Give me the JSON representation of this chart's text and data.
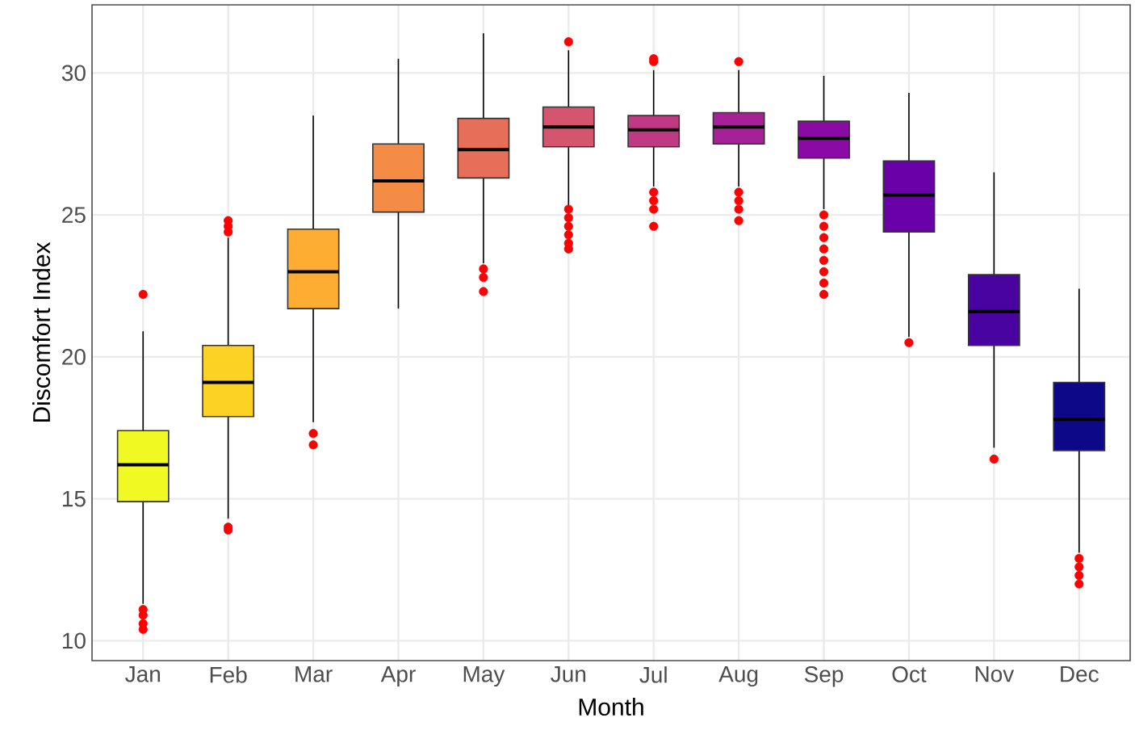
{
  "chart_data": {
    "type": "box",
    "xlabel": "Month",
    "ylabel": "Discomfort Index",
    "categories": [
      "Jan",
      "Feb",
      "Mar",
      "Apr",
      "May",
      "Jun",
      "Jul",
      "Aug",
      "Sep",
      "Oct",
      "Nov",
      "Dec"
    ],
    "colors": [
      "#f0f921",
      "#fcd225",
      "#fdad32",
      "#f58c46",
      "#e76f5a",
      "#d5546e",
      "#c03a83",
      "#a62098",
      "#8b0aa5",
      "#6a00a8",
      "#4903a0",
      "#0d0887"
    ],
    "boxes": [
      {
        "low": 11.3,
        "q1": 14.9,
        "median": 16.2,
        "q3": 17.4,
        "high": 20.9,
        "outliers": [
          22.2,
          11.1,
          10.9,
          10.6,
          10.4
        ]
      },
      {
        "low": 14.3,
        "q1": 17.9,
        "median": 19.1,
        "q3": 20.4,
        "high": 24.2,
        "outliers": [
          24.4,
          24.6,
          24.8,
          14.0,
          13.9
        ]
      },
      {
        "low": 17.7,
        "q1": 21.7,
        "median": 23.0,
        "q3": 24.5,
        "high": 28.5,
        "outliers": [
          17.3,
          16.9
        ]
      },
      {
        "low": 21.7,
        "q1": 25.1,
        "median": 26.2,
        "q3": 27.5,
        "high": 30.5
      },
      {
        "low": 23.3,
        "q1": 26.3,
        "median": 27.3,
        "q3": 28.4,
        "high": 31.4,
        "outliers": [
          23.1,
          22.8,
          22.3
        ]
      },
      {
        "low": 25.3,
        "q1": 27.4,
        "median": 28.1,
        "q3": 28.8,
        "high": 30.8,
        "outliers": [
          31.1,
          25.2,
          24.9,
          24.6,
          24.3,
          24.0,
          23.8
        ]
      },
      {
        "low": 26.0,
        "q1": 27.4,
        "median": 28.0,
        "q3": 28.5,
        "high": 30.1,
        "outliers": [
          30.5,
          30.4,
          25.8,
          25.5,
          25.2,
          24.6
        ]
      },
      {
        "low": 26.0,
        "q1": 27.5,
        "median": 28.1,
        "q3": 28.6,
        "high": 30.1,
        "outliers": [
          30.4,
          25.8,
          25.5,
          25.2,
          24.8
        ]
      },
      {
        "low": 25.2,
        "q1": 27.0,
        "median": 27.7,
        "q3": 28.3,
        "high": 29.9,
        "outliers": [
          25.0,
          24.6,
          24.2,
          23.8,
          23.4,
          23.0,
          22.6,
          22.2
        ]
      },
      {
        "low": 20.7,
        "q1": 24.4,
        "median": 25.7,
        "q3": 26.9,
        "high": 29.3,
        "outliers": [
          20.5
        ]
      },
      {
        "low": 16.8,
        "q1": 20.4,
        "median": 21.6,
        "q3": 22.9,
        "high": 26.5,
        "outliers": [
          16.4
        ]
      },
      {
        "low": 13.1,
        "q1": 16.7,
        "median": 17.8,
        "q3": 19.1,
        "high": 22.4,
        "outliers": [
          12.9,
          12.6,
          12.3,
          12.0
        ]
      }
    ],
    "ylim": [
      9.3,
      32.4
    ],
    "yticks": [
      10,
      15,
      20,
      25,
      30
    ],
    "grid": true
  }
}
